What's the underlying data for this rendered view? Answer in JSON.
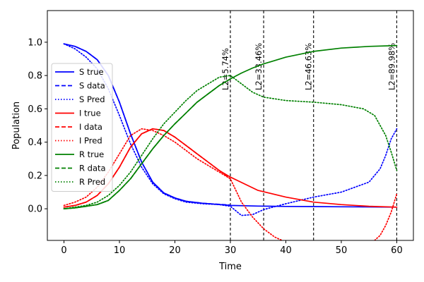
{
  "chart_data": {
    "type": "line",
    "title": "",
    "xlabel": "Time",
    "ylabel": "Population",
    "xlim": [
      -3,
      63
    ],
    "ylim": [
      -0.19,
      1.19
    ],
    "xticks": [
      0,
      10,
      20,
      30,
      40,
      50,
      60
    ],
    "yticks": [
      0.0,
      0.2,
      0.4,
      0.6,
      0.8,
      1.0
    ],
    "xtick_labels": [
      "0",
      "10",
      "20",
      "30",
      "40",
      "50",
      "60"
    ],
    "ytick_labels": [
      "0.0",
      "0.2",
      "0.4",
      "0.6",
      "0.8",
      "1.0"
    ],
    "grid": false,
    "legend_position": "center-left",
    "colors": {
      "S": "#0000ff",
      "I": "#ff0000",
      "R": "#008000"
    },
    "series": [
      {
        "name": "S true",
        "group": "S",
        "style": "solid",
        "x": [
          0,
          2,
          4,
          6,
          8,
          10,
          12,
          14,
          16,
          18,
          20,
          22,
          25,
          30,
          35,
          40,
          45,
          50,
          55,
          60
        ],
        "y": [
          0.99,
          0.975,
          0.945,
          0.895,
          0.8,
          0.64,
          0.45,
          0.28,
          0.16,
          0.095,
          0.065,
          0.045,
          0.033,
          0.02,
          0.016,
          0.014,
          0.013,
          0.012,
          0.011,
          0.01
        ]
      },
      {
        "name": "S data",
        "group": "S",
        "style": "dashed",
        "x": [
          0,
          2,
          4,
          6,
          8,
          10,
          12,
          14,
          16,
          18,
          20,
          22,
          25,
          30
        ],
        "y": [
          0.99,
          0.975,
          0.945,
          0.895,
          0.8,
          0.64,
          0.45,
          0.28,
          0.16,
          0.095,
          0.065,
          0.045,
          0.033,
          0.022
        ]
      },
      {
        "name": "S Pred",
        "group": "S",
        "style": "dotted",
        "x": [
          0,
          2,
          4,
          6,
          8,
          10,
          12,
          14,
          16,
          18,
          20,
          22,
          25,
          28,
          30,
          32,
          34,
          36,
          40,
          45,
          50,
          55,
          57,
          58,
          59,
          60
        ],
        "y": [
          0.99,
          0.96,
          0.91,
          0.84,
          0.72,
          0.56,
          0.39,
          0.25,
          0.15,
          0.09,
          0.06,
          0.04,
          0.03,
          0.025,
          0.015,
          -0.04,
          -0.035,
          -0.005,
          0.03,
          0.07,
          0.1,
          0.16,
          0.24,
          0.32,
          0.42,
          0.48
        ]
      },
      {
        "name": "I true",
        "group": "I",
        "style": "solid",
        "x": [
          0,
          2,
          4,
          6,
          8,
          10,
          12,
          14,
          16,
          18,
          20,
          22,
          24,
          26,
          28,
          30,
          35,
          40,
          45,
          50,
          55,
          60
        ],
        "y": [
          0.01,
          0.02,
          0.04,
          0.08,
          0.15,
          0.25,
          0.37,
          0.45,
          0.48,
          0.47,
          0.43,
          0.38,
          0.33,
          0.28,
          0.23,
          0.19,
          0.11,
          0.07,
          0.04,
          0.025,
          0.015,
          0.01
        ]
      },
      {
        "name": "I data",
        "group": "I",
        "style": "dashed",
        "x": [
          0,
          2,
          4,
          6,
          8,
          10,
          12,
          14,
          16,
          18,
          20,
          22,
          24,
          26,
          28,
          30
        ],
        "y": [
          0.01,
          0.02,
          0.04,
          0.08,
          0.15,
          0.25,
          0.37,
          0.45,
          0.48,
          0.47,
          0.43,
          0.38,
          0.33,
          0.28,
          0.23,
          0.18
        ]
      },
      {
        "name": "I Pred",
        "group": "I",
        "style": "dotted",
        "x": [
          0,
          2,
          4,
          6,
          8,
          10,
          12,
          14,
          16,
          18,
          20,
          22,
          24,
          26,
          28,
          30,
          32,
          34,
          36,
          38,
          40
        ],
        "y": [
          0.02,
          0.04,
          0.07,
          0.13,
          0.22,
          0.33,
          0.44,
          0.48,
          0.47,
          0.44,
          0.4,
          0.35,
          0.3,
          0.26,
          0.22,
          0.18,
          0.04,
          -0.05,
          -0.12,
          -0.17,
          -0.2
        ]
      },
      {
        "name": "I Pred (end)",
        "group": "I",
        "style": "dotted",
        "legend": false,
        "x": [
          56,
          57,
          58,
          59,
          60
        ],
        "y": [
          -0.19,
          -0.16,
          -0.1,
          -0.02,
          0.09
        ]
      },
      {
        "name": "R true",
        "group": "R",
        "style": "solid",
        "x": [
          0,
          2,
          4,
          6,
          8,
          10,
          12,
          14,
          16,
          18,
          20,
          22,
          24,
          26,
          28,
          30,
          32,
          34,
          36,
          40,
          45,
          50,
          55,
          60
        ],
        "y": [
          0.0,
          0.005,
          0.015,
          0.025,
          0.05,
          0.11,
          0.18,
          0.27,
          0.36,
          0.44,
          0.51,
          0.575,
          0.64,
          0.69,
          0.74,
          0.78,
          0.815,
          0.845,
          0.87,
          0.91,
          0.945,
          0.965,
          0.975,
          0.98
        ]
      },
      {
        "name": "R data",
        "group": "R",
        "style": "dashed",
        "x": [
          0,
          2,
          4,
          6,
          8,
          10,
          12,
          14,
          16,
          18,
          20,
          22,
          24,
          26,
          28,
          30
        ],
        "y": [
          0.0,
          0.005,
          0.015,
          0.025,
          0.05,
          0.11,
          0.18,
          0.27,
          0.36,
          0.44,
          0.51,
          0.575,
          0.64,
          0.69,
          0.74,
          0.78
        ]
      },
      {
        "name": "R Pred",
        "group": "R",
        "style": "dotted",
        "x": [
          0,
          2,
          4,
          6,
          8,
          10,
          12,
          14,
          16,
          18,
          20,
          22,
          24,
          26,
          28,
          30,
          32,
          34,
          36,
          40,
          45,
          50,
          54,
          56,
          58,
          59,
          60
        ],
        "y": [
          0.0,
          0.01,
          0.02,
          0.04,
          0.08,
          0.14,
          0.22,
          0.32,
          0.42,
          0.51,
          0.58,
          0.65,
          0.71,
          0.75,
          0.79,
          0.8,
          0.75,
          0.7,
          0.67,
          0.65,
          0.64,
          0.625,
          0.6,
          0.56,
          0.44,
          0.34,
          0.23
        ]
      }
    ],
    "annotations": [
      {
        "x": 30,
        "label": "L2=5.74%"
      },
      {
        "x": 36,
        "label": "L2=33.46%"
      },
      {
        "x": 45,
        "label": "L2=46.63%"
      },
      {
        "x": 60,
        "label": "L2=89.98%"
      }
    ]
  }
}
